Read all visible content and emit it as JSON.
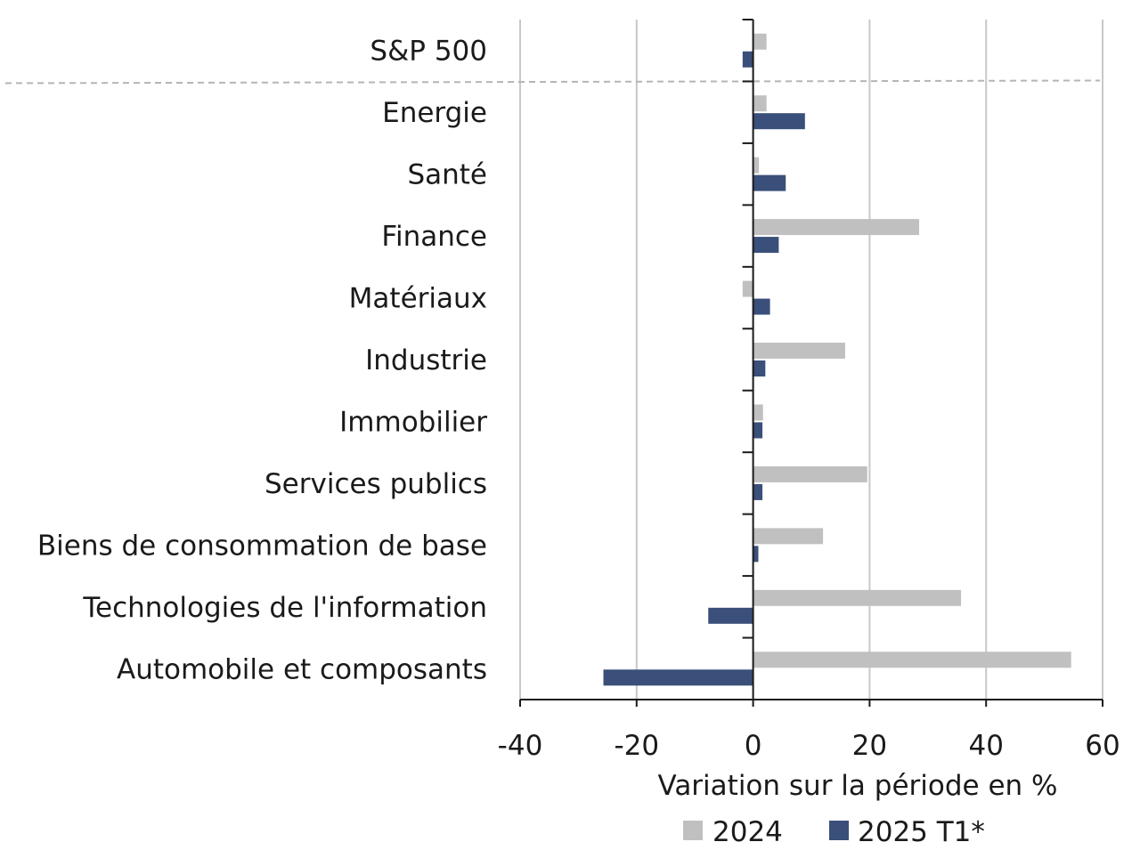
{
  "chart_data": {
    "type": "bar",
    "orientation": "horizontal",
    "categories": [
      "S&P 500",
      "Energie",
      "Santé",
      "Finance",
      "Matériaux",
      "Industrie",
      "Immobilier",
      "Services publics",
      "Biens de consommation de base",
      "Technologies de l'information",
      "Automobile et composants"
    ],
    "series": [
      {
        "name": "2024",
        "color": "#c0c0c0",
        "values": [
          2.3,
          2.3,
          1.0,
          28.5,
          -1.8,
          15.8,
          1.7,
          19.6,
          12.0,
          35.7,
          54.6
        ]
      },
      {
        "name": "2025 T1*",
        "color": "#3a4f7a",
        "values": [
          -1.8,
          8.9,
          5.6,
          4.4,
          2.9,
          2.1,
          1.6,
          1.6,
          0.9,
          -7.7,
          -25.7
        ]
      }
    ],
    "xlim": [
      -40,
      60
    ],
    "xticks": [
      "-40",
      "-20",
      "0",
      "20",
      "40",
      "60"
    ],
    "xlabel": "Variation sur la période en %",
    "ylabel": "",
    "title": "",
    "grid": "vertical",
    "legend": "bottom",
    "separator_after_first_category": true
  }
}
